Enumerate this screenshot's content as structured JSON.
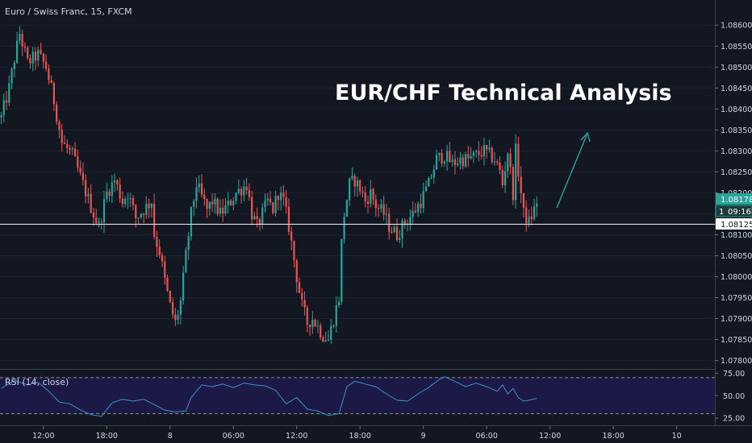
{
  "symbol_title": "Euro / Swiss Franc, 15, FXCM",
  "overlay_title": "EUR/CHF Technical Analysis",
  "price_badges": {
    "last_price": "1.08178",
    "countdown_prefix": "1",
    "countdown": "09:16",
    "line_price": "1.08125"
  },
  "rsi_label": "RSI (14, close)",
  "colors": {
    "background": "#131722",
    "up": "#26a69a",
    "down": "#ef5350",
    "rsi_line": "#3a93c4",
    "rsi_band": "#1f1a4d",
    "arrow": "#26a69a",
    "horizontal_line": "#ffffff"
  },
  "chart_data": [
    {
      "type": "candlestick",
      "title": "Euro / Swiss Franc, 15, FXCM",
      "ylim": [
        1.0778,
        1.0866
      ],
      "yticks": [
        "1.08600",
        "1.08550",
        "1.08500",
        "1.08450",
        "1.08400",
        "1.08350",
        "1.08300",
        "1.08250",
        "1.08200",
        "1.08150",
        "1.08100",
        "1.08050",
        "1.08000",
        "1.07950",
        "1.07900",
        "1.07850",
        "1.07800"
      ],
      "xticks": [
        "12:00",
        "18:00",
        "8",
        "06:00",
        "12:00",
        "18:00",
        "9",
        "06:00",
        "12:00",
        "18:00",
        "10"
      ],
      "horizontal_line": 1.08125,
      "close_path": [
        [
          0,
          1.0838
        ],
        [
          3,
          1.0845
        ],
        [
          5,
          1.0852
        ],
        [
          7,
          1.0858
        ],
        [
          10,
          1.0851
        ],
        [
          14,
          1.0853
        ],
        [
          17,
          1.085
        ],
        [
          20,
          1.0842
        ],
        [
          23,
          1.0832
        ],
        [
          27,
          1.0829
        ],
        [
          31,
          1.0822
        ],
        [
          35,
          1.0815
        ],
        [
          37,
          1.0812
        ],
        [
          40,
          1.082
        ],
        [
          43,
          1.0823
        ],
        [
          46,
          1.0818
        ],
        [
          48,
          1.082
        ],
        [
          51,
          1.0814
        ],
        [
          54,
          1.0816
        ],
        [
          57,
          1.0818
        ],
        [
          58,
          1.081
        ],
        [
          60,
          1.0806
        ],
        [
          62,
          1.0799
        ],
        [
          64,
          1.0793
        ],
        [
          66,
          1.0789
        ],
        [
          68,
          1.0794
        ],
        [
          70,
          1.0805
        ],
        [
          72,
          1.0815
        ],
        [
          74,
          1.0822
        ],
        [
          76,
          1.0819
        ],
        [
          78,
          1.0816
        ],
        [
          80,
          1.0818
        ],
        [
          83,
          1.0815
        ],
        [
          86,
          1.0817
        ],
        [
          89,
          1.082
        ],
        [
          91,
          1.0821
        ],
        [
          93,
          1.0822
        ],
        [
          95,
          1.0815
        ],
        [
          97,
          1.0812
        ],
        [
          99,
          1.0815
        ],
        [
          101,
          1.0818
        ],
        [
          103,
          1.0816
        ],
        [
          105,
          1.082
        ],
        [
          107,
          1.0818
        ],
        [
          109,
          1.0812
        ],
        [
          110,
          1.0808
        ],
        [
          112,
          1.08
        ],
        [
          114,
          1.0793
        ],
        [
          116,
          1.0789
        ],
        [
          118,
          1.079
        ],
        [
          120,
          1.0788
        ],
        [
          122,
          1.0786
        ],
        [
          124,
          1.0785
        ],
        [
          126,
          1.079
        ],
        [
          128,
          1.0795
        ],
        [
          129,
          1.0808
        ],
        [
          130,
          1.0815
        ],
        [
          132,
          1.0822
        ],
        [
          134,
          1.0823
        ],
        [
          136,
          1.0821
        ],
        [
          138,
          1.0818
        ],
        [
          140,
          1.082
        ],
        [
          142,
          1.0817
        ],
        [
          145,
          1.0815
        ],
        [
          147,
          1.0812
        ],
        [
          150,
          1.081
        ],
        [
          153,
          1.0813
        ],
        [
          156,
          1.0815
        ],
        [
          159,
          1.0818
        ],
        [
          162,
          1.0822
        ],
        [
          165,
          1.0828
        ],
        [
          168,
          1.0829
        ],
        [
          171,
          1.0827
        ],
        [
          174,
          1.0828
        ],
        [
          177,
          1.0828
        ],
        [
          180,
          1.0829
        ],
        [
          183,
          1.083
        ],
        [
          185,
          1.0829
        ],
        [
          187,
          1.0828
        ],
        [
          189,
          1.0825
        ],
        [
          190,
          1.0822
        ],
        [
          192,
          1.083
        ],
        [
          194,
          1.082
        ],
        [
          195,
          1.083
        ],
        [
          197,
          1.082
        ],
        [
          198,
          1.0815
        ],
        [
          200,
          1.0813
        ],
        [
          202,
          1.0816
        ],
        [
          203,
          1.0818
        ]
      ]
    },
    {
      "type": "line",
      "title": "RSI (14, close)",
      "ylim": [
        18,
        78
      ],
      "yticks": [
        "75.00",
        "50.00",
        "25.00"
      ],
      "band": [
        30,
        70
      ],
      "x": [
        0,
        5,
        10,
        14,
        18,
        22,
        26,
        30,
        34,
        38,
        42,
        46,
        50,
        54,
        58,
        62,
        66,
        70,
        72,
        76,
        80,
        84,
        88,
        92,
        96,
        100,
        104,
        108,
        112,
        116,
        120,
        124,
        128,
        131,
        134,
        138,
        142,
        146,
        150,
        154,
        158,
        162,
        166,
        168,
        172,
        176,
        180,
        184,
        188,
        190,
        192,
        194,
        196,
        198,
        200,
        203
      ],
      "values": [
        58,
        67,
        62,
        65,
        55,
        43,
        41,
        34,
        29,
        27,
        42,
        46,
        44,
        46,
        40,
        34,
        32,
        33,
        48,
        62,
        60,
        63,
        59,
        64,
        62,
        61,
        56,
        41,
        48,
        35,
        33,
        28,
        30,
        60,
        66,
        63,
        60,
        52,
        45,
        44,
        52,
        59,
        68,
        71,
        66,
        60,
        64,
        60,
        55,
        62,
        52,
        58,
        48,
        44,
        45,
        47
      ]
    }
  ]
}
